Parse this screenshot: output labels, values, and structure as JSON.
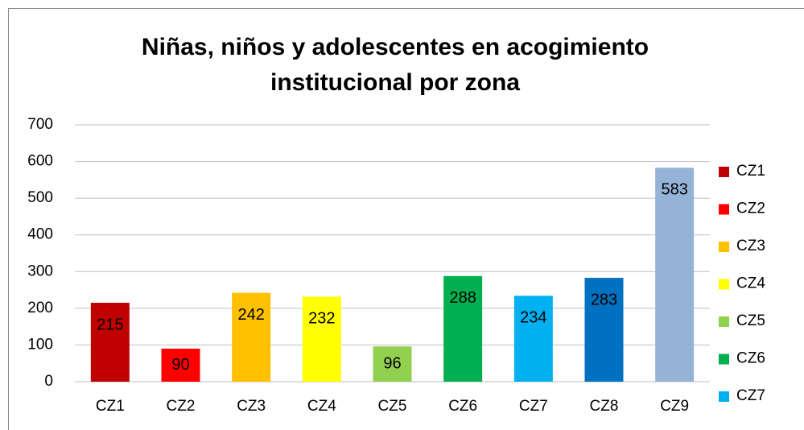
{
  "chart_data": {
    "type": "bar",
    "title": [
      "Niñas, niños y adolescentes en acogimiento",
      "institucional por zona"
    ],
    "categories": [
      "CZ1",
      "CZ2",
      "CZ3",
      "CZ4",
      "CZ5",
      "CZ6",
      "CZ7",
      "CZ8",
      "CZ9"
    ],
    "values": [
      215,
      90,
      242,
      232,
      96,
      288,
      234,
      283,
      583
    ],
    "colors": [
      "#c00000",
      "#ff0000",
      "#ffc000",
      "#ffff00",
      "#92d050",
      "#00b050",
      "#00b0f0",
      "#0070c0",
      "#95b3d7"
    ],
    "ylim": [
      0,
      700
    ],
    "yticks": [
      0,
      100,
      200,
      300,
      400,
      500,
      600,
      700
    ],
    "grid": true,
    "legend": "right"
  }
}
